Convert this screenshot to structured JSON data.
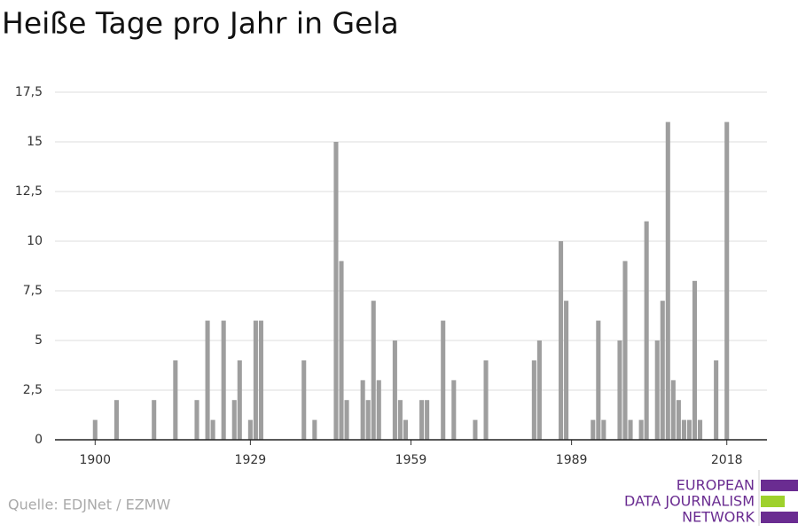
{
  "chart_data": {
    "type": "bar",
    "title": "Heiße Tage pro Jahr in Gela",
    "x": [
      1900,
      1904,
      1911,
      1915,
      1919,
      1921,
      1922,
      1924,
      1926,
      1927,
      1929,
      1930,
      1931,
      1939,
      1941,
      1945,
      1946,
      1947,
      1950,
      1951,
      1952,
      1953,
      1956,
      1957,
      1958,
      1961,
      1962,
      1965,
      1967,
      1971,
      1973,
      1982,
      1983,
      1987,
      1988,
      1993,
      1994,
      1995,
      1998,
      1999,
      2000,
      2002,
      2003,
      2005,
      2006,
      2007,
      2008,
      2009,
      2010,
      2011,
      2012,
      2013,
      2016,
      2018
    ],
    "values": [
      1,
      2,
      2,
      4,
      2,
      6,
      1,
      6,
      2,
      4,
      1,
      6,
      6,
      4,
      1,
      15,
      9,
      2,
      3,
      2,
      7,
      3,
      5,
      2,
      1,
      2,
      2,
      6,
      3,
      1,
      4,
      4,
      5,
      10,
      7,
      1,
      6,
      1,
      5,
      9,
      1,
      1,
      11,
      5,
      7,
      16,
      3,
      2,
      1,
      1,
      8,
      1,
      4,
      16
    ],
    "color": "#9e9e9e",
    "xlim": [
      1892.5,
      2025.5
    ],
    "xticks": [
      1900,
      1929,
      1959,
      1989,
      2018
    ],
    "ylim": [
      0,
      17.5
    ],
    "yticks": [
      0,
      {
        "value": 2.5,
        "label": "2,5"
      },
      5,
      {
        "value": 7.5,
        "label": "7,5"
      },
      10,
      {
        "value": 12.5,
        "label": "12,5"
      },
      15,
      {
        "value": 17.5,
        "label": "17,5"
      }
    ],
    "grid": true,
    "source": "Quelle: EDJNet / EZMW"
  },
  "logo": {
    "lines": [
      "EUROPEAN",
      "DATA JOURNALISM",
      "NETWORK"
    ]
  }
}
